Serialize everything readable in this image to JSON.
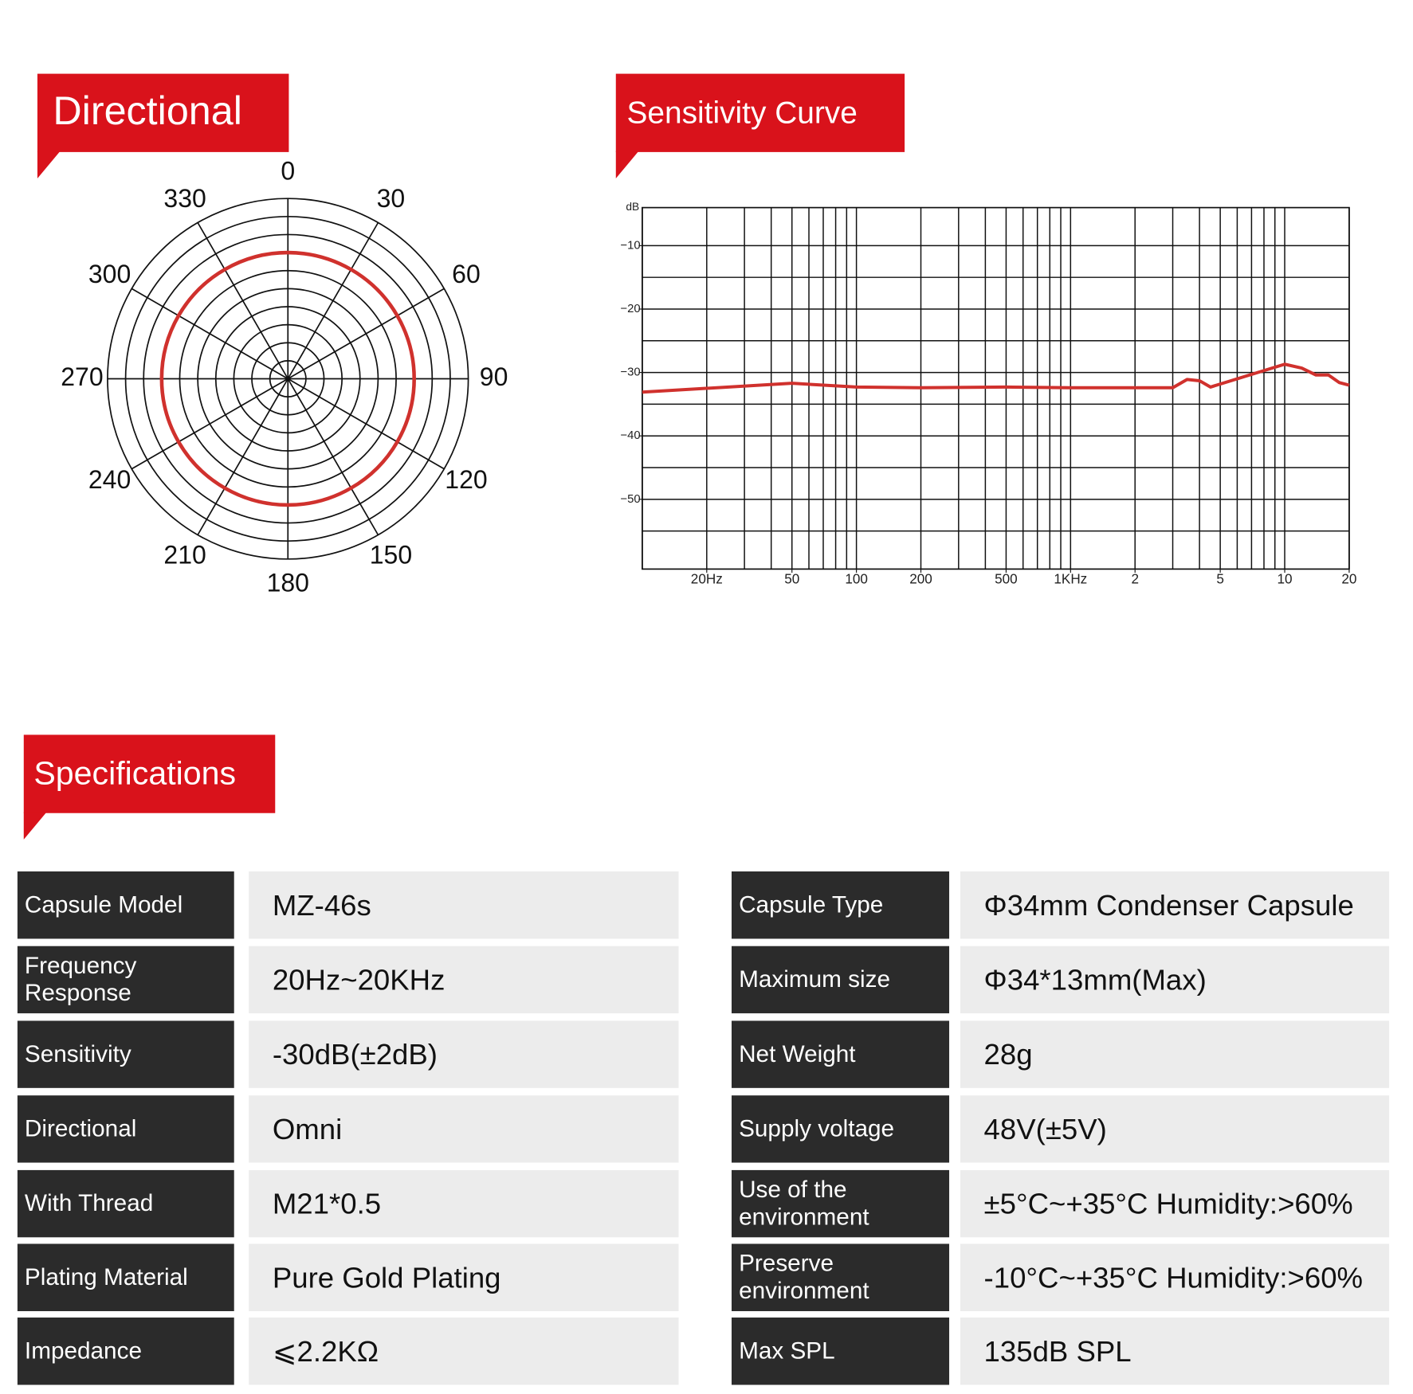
{
  "chart_data": [
    {
      "type": "polar",
      "title": "Directional",
      "thetaticks": [
        0,
        30,
        60,
        90,
        120,
        150,
        180,
        210,
        240,
        270,
        300,
        330
      ],
      "rlim": [
        0,
        1
      ],
      "rticks": [
        0.1,
        0.2,
        0.3,
        0.4,
        0.5,
        0.6,
        0.7,
        0.8,
        0.9,
        1
      ],
      "grid": true,
      "series": [
        {
          "color": "#d0312d",
          "theta": [
            0,
            30,
            60,
            90,
            120,
            150,
            180,
            210,
            240,
            270,
            300,
            330
          ],
          "values": [
            0.7,
            0.7,
            0.7,
            0.7,
            0.7,
            0.7,
            0.7,
            0.7,
            0.7,
            0.7,
            0.7,
            0.7
          ]
        }
      ]
    },
    {
      "type": "line",
      "title": "Sensitivity Curve",
      "y_label": "dB",
      "xscale": "log",
      "xlim": [
        10,
        20000
      ],
      "ylim": [
        -61,
        -4
      ],
      "xticks": [
        {
          "value": 20,
          "label": "20Hz"
        },
        50,
        100,
        200,
        500,
        {
          "value": 1000,
          "label": "1KHz"
        },
        {
          "value": 2000,
          "label": "2"
        },
        {
          "value": 5000,
          "label": "5"
        },
        {
          "value": 10000,
          "label": "10"
        },
        {
          "value": 20000,
          "label": "20"
        }
      ],
      "yticks": [
        {
          "value": -10,
          "label": "−10"
        },
        {
          "value": -20,
          "label": "−20"
        },
        {
          "value": -30,
          "label": "−30"
        },
        {
          "value": -40,
          "label": "−40"
        },
        {
          "value": -50,
          "label": "−50"
        }
      ],
      "xgrid": [
        10,
        20,
        30,
        40,
        50,
        60,
        70,
        80,
        90,
        100,
        200,
        300,
        400,
        500,
        600,
        700,
        800,
        900,
        1000,
        2000,
        3000,
        4000,
        5000,
        6000,
        7000,
        8000,
        9000,
        10000,
        20000
      ],
      "ygrid": [
        -55,
        -50,
        -45,
        -40,
        -35,
        -30,
        -25,
        -20,
        -15,
        -10
      ],
      "grid": true,
      "series": [
        {
          "color": "#d0312d",
          "x": [
            10,
            50,
            100,
            200,
            500,
            1000,
            2000,
            3000,
            3500,
            4000,
            4500,
            7000,
            10000,
            12000,
            14000,
            16000,
            18000,
            20000
          ],
          "values": [
            -33.1,
            -31.7,
            -32.3,
            -32.4,
            -32.3,
            -32.4,
            -32.4,
            -32.4,
            -31.1,
            -31.3,
            -32.3,
            -30.3,
            -28.7,
            -29.3,
            -30.4,
            -30.4,
            -31.6,
            -32
          ]
        }
      ]
    }
  ],
  "specifications": {
    "title": "Specifications",
    "rows": [
      [
        "Capsule Model",
        "MZ-46s",
        "Capsule Type",
        "Φ34mm Condenser Capsule"
      ],
      [
        "Frequency Response",
        "20Hz~20KHz",
        "Maximum size",
        "Φ34*13mm(Max)"
      ],
      [
        "Sensitivity",
        "-30dB(±2dB)",
        "Net Weight",
        "28g"
      ],
      [
        "Directional",
        "Omni",
        "Supply voltage",
        "48V(±5V)"
      ],
      [
        "With Thread",
        "M21*0.5",
        "Use of the environment",
        "±5°C~+35°C Humidity:>60%"
      ],
      [
        "Plating Material",
        "Pure Gold Plating",
        "Preserve environment",
        "-10°C~+35°C Humidity:>60%"
      ],
      [
        "Impedance",
        "⩽2.2KΩ",
        "Max SPL",
        "135dB SPL"
      ]
    ]
  }
}
